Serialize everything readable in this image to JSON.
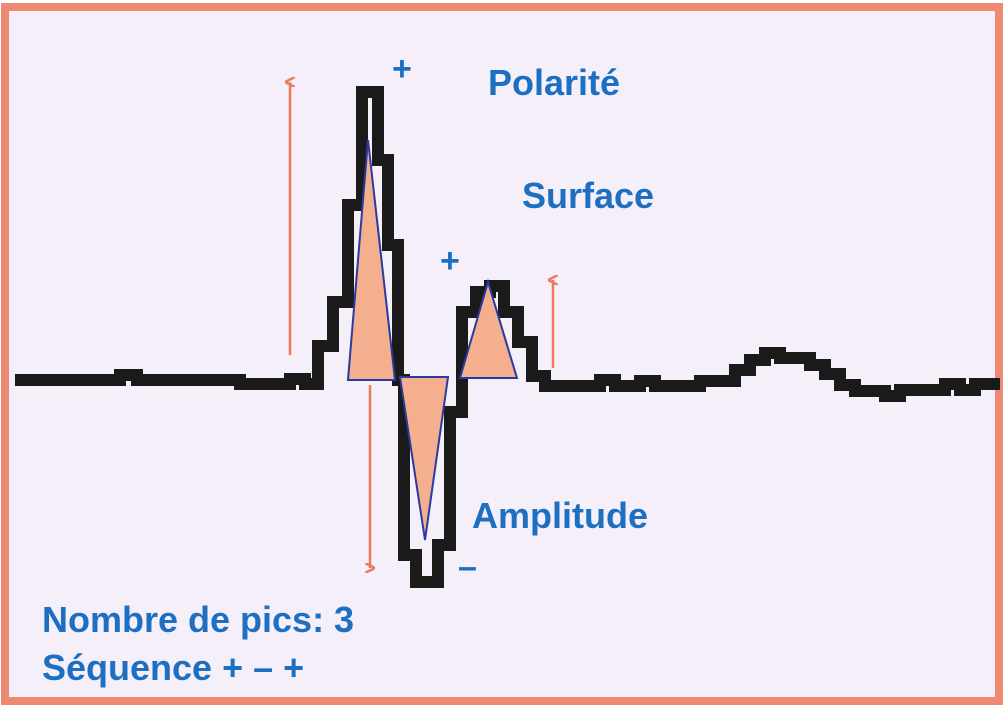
{
  "labels": {
    "polarity": "Polarité",
    "surface": "Surface",
    "amplitude": "Amplitude"
  },
  "signs": [
    "+",
    "+",
    "–"
  ],
  "footer": {
    "peaks": "Nombre de pics: 3",
    "sequence": "Séquence + – +"
  }
}
